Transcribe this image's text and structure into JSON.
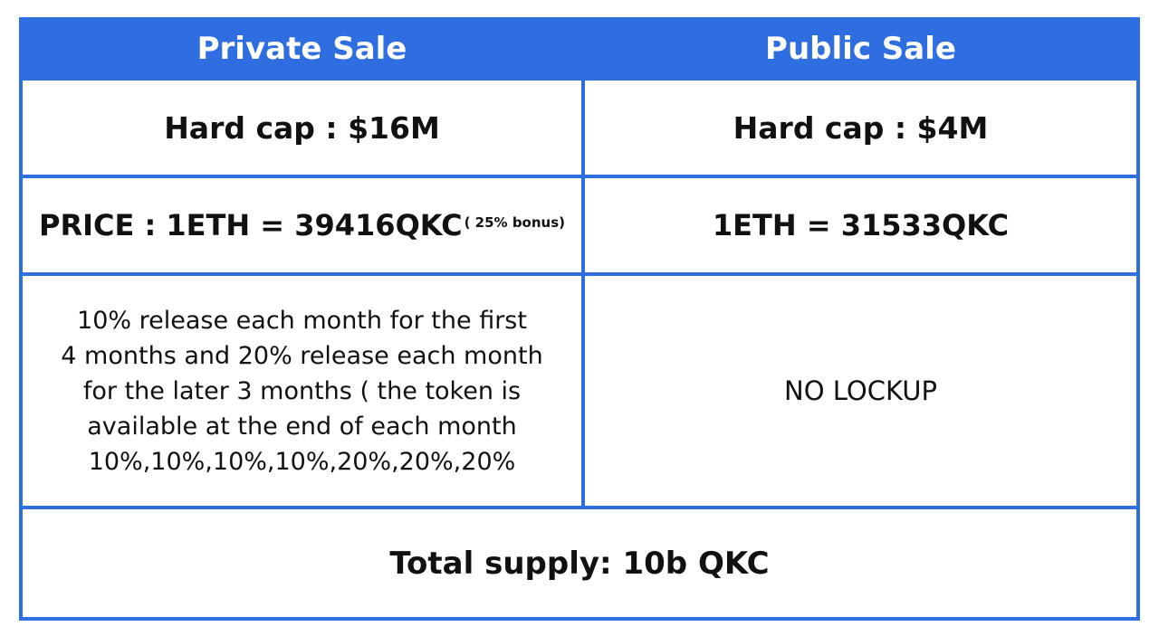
{
  "colors": {
    "accent": "#2f6ee0",
    "header_text": "#ffffff",
    "body_text": "#111111"
  },
  "table": {
    "headers": [
      "Private Sale",
      "Public Sale"
    ],
    "hard_cap": {
      "private": "Hard cap : $16M",
      "public": "Hard cap : $4M"
    },
    "price": {
      "private": "PRICE : 1ETH = 39416QKC",
      "private_note": "( 25% bonus)",
      "public": "1ETH = 31533QKC"
    },
    "release": {
      "private_lines": [
        "10% release each month for the first",
        "4 months and 20% release each month",
        "for the later 3 months ( the token is",
        "available at the end of each month",
        "10%,10%,10%,10%,20%,20%,20%"
      ],
      "public": "NO LOCKUP"
    },
    "total_supply": "Total supply: 10b QKC"
  }
}
